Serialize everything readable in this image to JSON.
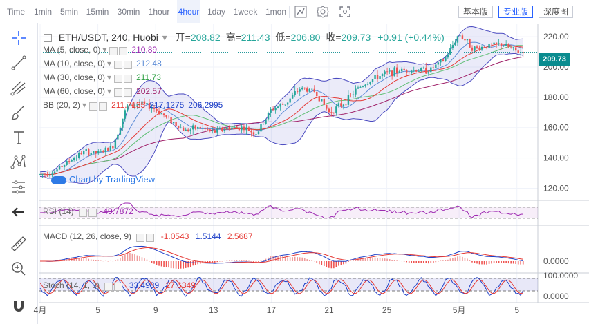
{
  "toolbar": {
    "timeframes": [
      "Time",
      "1min",
      "5min",
      "15min",
      "30min",
      "1hour",
      "4hour",
      "1day",
      "1week",
      "1mon"
    ],
    "active_timeframe": "4hour",
    "versions": [
      "基本版",
      "专业版",
      "深度图"
    ],
    "active_version": "专业版"
  },
  "legend": {
    "symbol": "ETH/USDT, 240, Huobi",
    "open_label": "开",
    "open": "208.82",
    "high_label": "高",
    "high": "211.43",
    "low_label": "低",
    "low": "206.80",
    "close_label": "收",
    "close": "209.73",
    "change": "+0.91 (+0.44%)"
  },
  "indicators": [
    {
      "name": "MA (5, close, 0)",
      "values": [
        "210.89"
      ],
      "colors": [
        "#9c27b0"
      ]
    },
    {
      "name": "MA (10, close, 0)",
      "values": [
        "212.48"
      ],
      "colors": [
        "#5b8bd6"
      ]
    },
    {
      "name": "MA (30, close, 0)",
      "values": [
        "211.73"
      ],
      "colors": [
        "#2ea043"
      ]
    },
    {
      "name": "MA (60, close, 0)",
      "values": [
        "202.57"
      ],
      "colors": [
        "#a0226a"
      ]
    },
    {
      "name": "BB (20, 2)",
      "values": [
        "211.7135",
        "217.1275",
        "206.2995"
      ],
      "colors": [
        "#e53935",
        "#1e40c8",
        "#1e40c8"
      ]
    }
  ],
  "watermark": "Chart by TradingView",
  "price_tag": "209.73",
  "colors": {
    "up": "#26a69a",
    "down": "#ef5350",
    "accent": "#2962ff",
    "bb": "#5c5ccf"
  },
  "rsi": {
    "label": "RSI (14)",
    "value": "49.7872"
  },
  "macd": {
    "label": "MACD (12, 26, close, 9)",
    "values": [
      "-1.0543",
      "1.5144",
      "2.5687"
    ],
    "colors": [
      "#e53935",
      "#1e40c8",
      "#e53935"
    ]
  },
  "stoch": {
    "label": "Stoch (14, 1, 3)",
    "values": [
      "33.4989",
      "27.6349"
    ],
    "colors": [
      "#1e40c8",
      "#e53935"
    ]
  },
  "chart_data": {
    "type": "candlestick",
    "x_tick_labels": [
      "4月",
      "5",
      "9",
      "13",
      "17",
      "21",
      "25",
      "5月",
      "5"
    ],
    "price_ticks": [
      "220.00",
      "200.00",
      "180.00",
      "160.00",
      "140.00",
      "120.00"
    ],
    "ylim": [
      112,
      226
    ],
    "last_close": 209.73,
    "close_path": [
      {
        "day": 1,
        "close": 129
      },
      {
        "day": 2,
        "close": 131
      },
      {
        "day": 3,
        "close": 138
      },
      {
        "day": 4,
        "close": 144
      },
      {
        "day": 5,
        "close": 143
      },
      {
        "day": 6,
        "close": 147
      },
      {
        "day": 7,
        "close": 174
      },
      {
        "day": 8,
        "close": 176
      },
      {
        "day": 9,
        "close": 172
      },
      {
        "day": 10,
        "close": 165
      },
      {
        "day": 11,
        "close": 158
      },
      {
        "day": 12,
        "close": 160
      },
      {
        "day": 13,
        "close": 157
      },
      {
        "day": 14,
        "close": 160
      },
      {
        "day": 15,
        "close": 160
      },
      {
        "day": 16,
        "close": 156
      },
      {
        "day": 17,
        "close": 172
      },
      {
        "day": 18,
        "close": 176
      },
      {
        "day": 19,
        "close": 186
      },
      {
        "day": 20,
        "close": 184
      },
      {
        "day": 21,
        "close": 170
      },
      {
        "day": 22,
        "close": 176
      },
      {
        "day": 23,
        "close": 186
      },
      {
        "day": 24,
        "close": 192
      },
      {
        "day": 25,
        "close": 196
      },
      {
        "day": 26,
        "close": 198
      },
      {
        "day": 27,
        "close": 198
      },
      {
        "day": 28,
        "close": 198
      },
      {
        "day": 29,
        "close": 205
      },
      {
        "day": 30,
        "close": 222
      },
      {
        "day": 31,
        "close": 212
      },
      {
        "day": 32,
        "close": 214
      },
      {
        "day": 33,
        "close": 215
      },
      {
        "day": 34,
        "close": 210
      }
    ],
    "rsi_ticks": [],
    "macd_ticks": [
      "0.0000"
    ],
    "stoch_ticks": [
      "100.0000",
      "0.0000"
    ]
  }
}
